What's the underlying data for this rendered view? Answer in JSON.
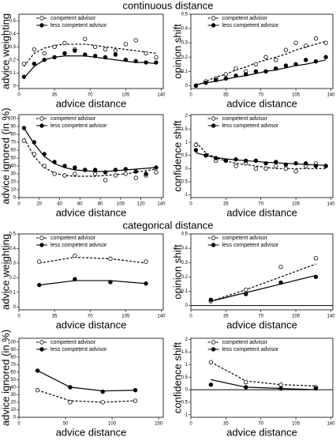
{
  "headings": [
    "continuous distance",
    "categorical distance"
  ],
  "chart_data": [
    {
      "type": "line",
      "ylabel": "advice weighting",
      "xlabel": "advice distance",
      "xlim": [
        0,
        142
      ],
      "xticks": [
        0,
        35,
        70,
        105,
        140
      ],
      "ylim": [
        -0.02,
        0.55
      ],
      "yticks": [
        0,
        0.1,
        0.2,
        0.3,
        0.4,
        0.5
      ],
      "series": [
        {
          "name": "competent advisor",
          "color": "#000000",
          "marker": "open",
          "dash": true,
          "x": [
            5,
            15,
            25,
            35,
            45,
            55,
            65,
            75,
            85,
            95,
            105,
            115,
            125,
            135
          ],
          "values": [
            0.17,
            0.28,
            0.25,
            0.3,
            0.33,
            0.28,
            0.36,
            0.3,
            0.28,
            0.27,
            0.32,
            0.35,
            0.25,
            0.22
          ],
          "fit": [
            0.15,
            0.25,
            0.29,
            0.31,
            0.32,
            0.32,
            0.32,
            0.31,
            0.3,
            0.29,
            0.28,
            0.27,
            0.26,
            0.25
          ]
        },
        {
          "name": "less competent advisor",
          "color": "#000000",
          "marker": "filled",
          "dash": false,
          "x": [
            5,
            15,
            25,
            35,
            45,
            55,
            65,
            75,
            85,
            95,
            105,
            115,
            125,
            135
          ],
          "values": [
            0.07,
            0.17,
            0.2,
            0.22,
            0.25,
            0.27,
            0.24,
            0.23,
            0.22,
            0.24,
            0.2,
            0.19,
            0.18,
            0.18
          ],
          "fit": [
            0.06,
            0.15,
            0.2,
            0.22,
            0.23,
            0.23,
            0.23,
            0.22,
            0.21,
            0.2,
            0.19,
            0.18,
            0.18,
            0.17
          ]
        }
      ]
    },
    {
      "type": "line",
      "ylabel": "opinion shift",
      "xlabel": "advice distance",
      "xlim": [
        0,
        142
      ],
      "xticks": [
        0,
        35,
        70,
        105,
        140
      ],
      "ylim": [
        -0.02,
        0.5
      ],
      "yticks": [
        0,
        0.1,
        0.2,
        0.3,
        0.4,
        0.5
      ],
      "series": [
        {
          "name": "competent advisor",
          "color": "#000000",
          "marker": "open",
          "dash": true,
          "x": [
            5,
            15,
            25,
            35,
            45,
            55,
            65,
            75,
            85,
            95,
            105,
            115,
            125,
            135
          ],
          "values": [
            0.0,
            0.03,
            0.05,
            0.08,
            0.12,
            0.1,
            0.15,
            0.2,
            0.18,
            0.25,
            0.3,
            0.28,
            0.33,
            0.3
          ],
          "fit": [
            0.0,
            0.03,
            0.06,
            0.08,
            0.11,
            0.13,
            0.16,
            0.18,
            0.2,
            0.22,
            0.25,
            0.27,
            0.29,
            0.31
          ]
        },
        {
          "name": "less competent advisor",
          "color": "#000000",
          "marker": "filled",
          "dash": false,
          "x": [
            5,
            15,
            25,
            35,
            45,
            55,
            65,
            75,
            85,
            95,
            105,
            115,
            125,
            135
          ],
          "values": [
            0.0,
            0.02,
            0.04,
            0.05,
            0.07,
            0.08,
            0.1,
            0.1,
            0.12,
            0.14,
            0.15,
            0.18,
            0.17,
            0.2
          ],
          "fit": [
            0.007,
            0.02,
            0.03,
            0.045,
            0.06,
            0.07,
            0.085,
            0.1,
            0.11,
            0.125,
            0.14,
            0.15,
            0.165,
            0.18
          ]
        }
      ]
    },
    {
      "type": "line",
      "ylabel": "advice ignored (in %)",
      "xlabel": "advice distance",
      "xlim": [
        0,
        142
      ],
      "xticks": [
        0,
        20,
        40,
        60,
        80,
        100,
        120,
        140
      ],
      "ylim": [
        0,
        105
      ],
      "yticks": [
        0,
        10,
        20,
        30,
        40,
        50,
        60,
        70,
        80,
        90,
        100
      ],
      "series": [
        {
          "name": "competent advisor",
          "color": "#000000",
          "marker": "open",
          "dash": true,
          "x": [
            5,
            15,
            25,
            35,
            45,
            55,
            65,
            75,
            85,
            95,
            105,
            115,
            125,
            135
          ],
          "values": [
            72,
            55,
            40,
            30,
            28,
            30,
            35,
            30,
            22,
            28,
            30,
            25,
            28,
            32
          ],
          "fit": [
            75,
            52,
            38,
            31,
            28,
            27,
            27,
            27,
            28,
            29,
            30,
            32,
            34,
            36
          ]
        },
        {
          "name": "less competent advisor",
          "color": "#000000",
          "marker": "filled",
          "dash": false,
          "x": [
            5,
            15,
            25,
            35,
            45,
            55,
            65,
            75,
            85,
            95,
            105,
            115,
            125,
            135
          ],
          "values": [
            88,
            70,
            55,
            45,
            40,
            38,
            35,
            35,
            32,
            35,
            36,
            33,
            30,
            38
          ],
          "fit": [
            88,
            68,
            52,
            43,
            38,
            35,
            34,
            33,
            33,
            34,
            35,
            36,
            37,
            38
          ]
        }
      ]
    },
    {
      "type": "line",
      "ylabel": "confidence shift",
      "xlabel": "advice distance",
      "xlim": [
        0,
        142
      ],
      "xticks": [
        0,
        35,
        70,
        105,
        140
      ],
      "ylim": [
        -1.1,
        2.05
      ],
      "yticks": [
        -1,
        -0.5,
        0,
        0.5,
        1,
        1.5,
        2
      ],
      "series": [
        {
          "name": "competent advisor",
          "color": "#000000",
          "marker": "open",
          "dash": true,
          "x": [
            5,
            15,
            25,
            35,
            45,
            55,
            65,
            75,
            85,
            95,
            105,
            115,
            125,
            135
          ],
          "values": [
            0.9,
            0.5,
            0.3,
            0.3,
            0.1,
            0.2,
            0.0,
            0.0,
            0.1,
            0.0,
            -0.1,
            0.1,
            0.2,
            0.1
          ],
          "fit": [
            1.0,
            0.6,
            0.4,
            0.3,
            0.2,
            0.15,
            0.1,
            0.05,
            0.0,
            0.0,
            0.0,
            0.0,
            0.0,
            0.0
          ]
        },
        {
          "name": "less competent advisor",
          "color": "#000000",
          "marker": "filled",
          "dash": false,
          "x": [
            5,
            15,
            25,
            35,
            45,
            55,
            65,
            75,
            85,
            95,
            105,
            115,
            125,
            135
          ],
          "values": [
            0.7,
            0.5,
            0.4,
            0.3,
            0.35,
            0.3,
            0.3,
            0.2,
            0.25,
            0.15,
            0.2,
            0.2,
            0.1,
            0.1
          ],
          "fit": [
            0.6,
            0.5,
            0.42,
            0.37,
            0.33,
            0.3,
            0.27,
            0.24,
            0.22,
            0.2,
            0.18,
            0.16,
            0.14,
            0.12
          ]
        }
      ]
    },
    {
      "type": "line",
      "ylabel": "advice weighting",
      "xlabel": "advice distance",
      "xlim": [
        0,
        142
      ],
      "xticks": [
        0,
        35,
        70,
        105,
        140
      ],
      "ylim": [
        -0.02,
        0.5
      ],
      "yticks": [
        0,
        0.1,
        0.2,
        0.3,
        0.4,
        0.5
      ],
      "series": [
        {
          "name": "competent advisor",
          "color": "#000000",
          "marker": "open",
          "dash": true,
          "x": [
            20,
            55,
            90,
            125
          ],
          "values": [
            0.31,
            0.35,
            0.33,
            0.31
          ],
          "fit": [
            0.3,
            0.34,
            0.33,
            0.3
          ]
        },
        {
          "name": "less competent advisor",
          "color": "#000000",
          "marker": "filled",
          "dash": false,
          "x": [
            20,
            55,
            90,
            125
          ],
          "values": [
            0.15,
            0.19,
            0.17,
            0.16
          ],
          "fit": [
            0.15,
            0.18,
            0.18,
            0.16
          ]
        }
      ]
    },
    {
      "type": "line",
      "ylabel": "opinion shift",
      "xlabel": "advice distance",
      "zero_line": true,
      "xlim": [
        0,
        142
      ],
      "xticks": [
        0,
        35,
        70,
        105,
        140
      ],
      "ylim": [
        -0.03,
        0.5
      ],
      "yticks": [
        0,
        0.1,
        0.2,
        0.3,
        0.4,
        0.5
      ],
      "series": [
        {
          "name": "competent advisor",
          "color": "#000000",
          "marker": "open",
          "dash": true,
          "x": [
            20,
            55,
            90,
            125
          ],
          "values": [
            0.03,
            0.11,
            0.27,
            0.33
          ],
          "fit": [
            0.03,
            0.11,
            0.2,
            0.29
          ]
        },
        {
          "name": "less competent advisor",
          "color": "#000000",
          "marker": "filled",
          "dash": false,
          "x": [
            20,
            55,
            90,
            125
          ],
          "values": [
            0.04,
            0.08,
            0.16,
            0.2
          ],
          "fit": [
            0.03,
            0.09,
            0.15,
            0.21
          ]
        }
      ]
    },
    {
      "type": "line",
      "ylabel": "advice ignored (in %)",
      "xlabel": "advice distance",
      "xlim": [
        0,
        155
      ],
      "xticks": [
        0,
        50,
        100,
        150
      ],
      "ylim": [
        0,
        105
      ],
      "yticks": [
        0,
        10,
        20,
        30,
        40,
        50,
        60,
        70,
        80,
        90,
        100
      ],
      "series": [
        {
          "name": "competent advisor",
          "color": "#000000",
          "marker": "open",
          "dash": true,
          "x": [
            20,
            55,
            90,
            125
          ],
          "values": [
            36,
            20,
            20,
            22
          ],
          "fit": [
            36,
            22,
            20,
            22
          ]
        },
        {
          "name": "less competent advisor",
          "color": "#000000",
          "marker": "filled",
          "dash": false,
          "x": [
            20,
            55,
            90,
            125
          ],
          "values": [
            62,
            40,
            34,
            36
          ],
          "fit": [
            62,
            40,
            35,
            36
          ]
        }
      ]
    },
    {
      "type": "line",
      "ylabel": "confidence shift",
      "xlabel": "advice distance",
      "zero_line": true,
      "xlim": [
        0,
        142
      ],
      "xticks": [
        0,
        35,
        70,
        105,
        140
      ],
      "ylim": [
        -1.1,
        2.05
      ],
      "yticks": [
        -1,
        -0.5,
        0,
        0.5,
        1,
        1.5,
        2
      ],
      "series": [
        {
          "name": "competent advisor",
          "color": "#000000",
          "marker": "open",
          "dash": true,
          "x": [
            20,
            55,
            90,
            125
          ],
          "values": [
            1.1,
            0.3,
            0.2,
            0.1
          ],
          "fit": [
            1.1,
            0.35,
            0.2,
            0.15
          ]
        },
        {
          "name": "less competent advisor",
          "color": "#000000",
          "marker": "filled",
          "dash": false,
          "x": [
            20,
            55,
            90,
            125
          ],
          "values": [
            0.2,
            0.1,
            0.05,
            0.05
          ],
          "fit": [
            0.4,
            0.1,
            0.05,
            0.0
          ]
        }
      ]
    }
  ]
}
